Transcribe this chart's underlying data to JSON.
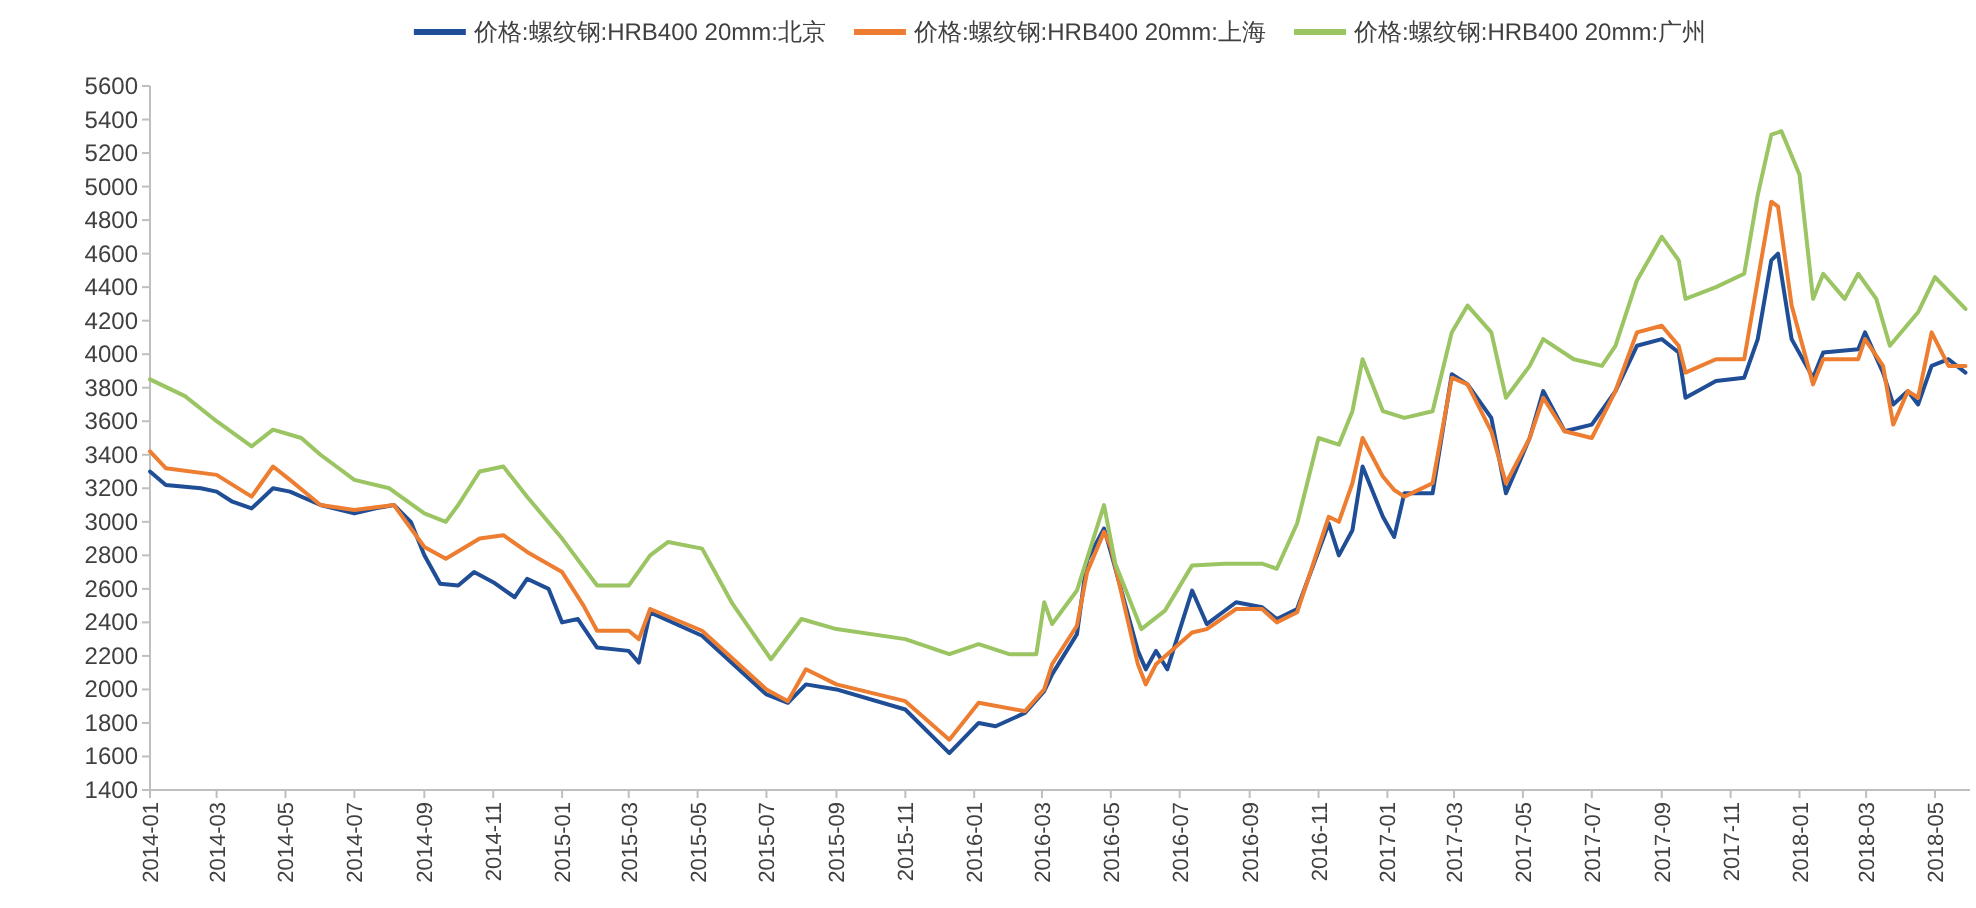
{
  "chart_data": {
    "type": "line",
    "legend": "top",
    "grid": false,
    "line_style": "solid",
    "marker": "none",
    "xlim": [
      "2014-01-01",
      "2018-06-01"
    ],
    "xticks": [
      "2014-01",
      "2014-03",
      "2014-05",
      "2014-07",
      "2014-09",
      "2014-11",
      "2015-01",
      "2015-03",
      "2015-05",
      "2015-07",
      "2015-09",
      "2015-11",
      "2016-01",
      "2016-03",
      "2016-05",
      "2016-07",
      "2016-09",
      "2016-11",
      "2017-01",
      "2017-03",
      "2017-05",
      "2017-07",
      "2017-09",
      "2017-11",
      "2018-01",
      "2018-03",
      "2018-05"
    ],
    "ylim": [
      1400,
      5600
    ],
    "yticks": [
      1400,
      1600,
      1800,
      2000,
      2200,
      2400,
      2600,
      2800,
      3000,
      3200,
      3400,
      3600,
      3800,
      4000,
      4200,
      4400,
      4600,
      4800,
      5000,
      5200,
      5400,
      5600
    ],
    "series": [
      {
        "name": "价格:螺纹钢:HRB400 20mm:北京",
        "color": "#1f4e96",
        "x": [
          "2014-01-01",
          "2014-01-15",
          "2014-02-15",
          "2014-03-01",
          "2014-03-15",
          "2014-04-01",
          "2014-04-20",
          "2014-05-05",
          "2014-06-01",
          "2014-07-01",
          "2014-07-20",
          "2014-08-05",
          "2014-08-20",
          "2014-09-01",
          "2014-09-15",
          "2014-10-01",
          "2014-10-15",
          "2014-11-01",
          "2014-11-20",
          "2014-12-01",
          "2014-12-20",
          "2015-01-01",
          "2015-01-15",
          "2015-02-01",
          "2015-03-01",
          "2015-03-10",
          "2015-03-20",
          "2015-05-05",
          "2015-07-01",
          "2015-07-20",
          "2015-08-05",
          "2015-09-01",
          "2015-11-01",
          "2015-12-10",
          "2016-01-05",
          "2016-01-20",
          "2016-02-15",
          "2016-03-03",
          "2016-03-10",
          "2016-04-01",
          "2016-04-10",
          "2016-04-25",
          "2016-05-01",
          "2016-05-25",
          "2016-06-01",
          "2016-06-10",
          "2016-06-20",
          "2016-07-12",
          "2016-07-25",
          "2016-08-20",
          "2016-09-12",
          "2016-09-25",
          "2016-10-13",
          "2016-11-10",
          "2016-11-19",
          "2016-12-01",
          "2016-12-10",
          "2016-12-28",
          "2017-01-07",
          "2017-01-16",
          "2017-02-10",
          "2017-02-27",
          "2017-03-13",
          "2017-04-03",
          "2017-04-16",
          "2017-05-07",
          "2017-05-19",
          "2017-06-07",
          "2017-07-01",
          "2017-07-22",
          "2017-08-10",
          "2017-09-01",
          "2017-09-16",
          "2017-09-22",
          "2017-10-19",
          "2017-11-13",
          "2017-11-25",
          "2017-12-07",
          "2017-12-13",
          "2017-12-25",
          "2018-01-13",
          "2018-01-22",
          "2018-02-22",
          "2018-02-28",
          "2018-03-16",
          "2018-03-25",
          "2018-04-07",
          "2018-04-16",
          "2018-04-28",
          "2018-05-13",
          "2018-05-28"
        ],
        "values": [
          3300,
          3220,
          3200,
          3180,
          3120,
          3080,
          3200,
          3180,
          3100,
          3050,
          3080,
          3100,
          3000,
          2800,
          2630,
          2620,
          2700,
          2640,
          2550,
          2660,
          2600,
          2400,
          2420,
          2250,
          2230,
          2160,
          2460,
          2320,
          1970,
          1920,
          2030,
          2000,
          1880,
          1620,
          1800,
          1780,
          1860,
          1990,
          2090,
          2330,
          2770,
          2960,
          2820,
          2230,
          2120,
          2230,
          2120,
          2590,
          2390,
          2520,
          2490,
          2420,
          2480,
          2990,
          2800,
          2950,
          3330,
          3030,
          2910,
          3170,
          3170,
          3880,
          3820,
          3620,
          3170,
          3500,
          3780,
          3540,
          3580,
          3780,
          4050,
          4090,
          4010,
          3740,
          3840,
          3860,
          4090,
          4560,
          4600,
          4090,
          3860,
          4010,
          4030,
          4130,
          3890,
          3700,
          3780,
          3700,
          3930,
          3970,
          3890
        ]
      },
      {
        "name": "价格:螺纹钢:HRB400 20mm:上海",
        "color": "#ed7d31",
        "x": [
          "2014-01-01",
          "2014-01-15",
          "2014-03-01",
          "2014-04-01",
          "2014-04-20",
          "2014-05-05",
          "2014-06-01",
          "2014-07-01",
          "2014-08-05",
          "2014-09-01",
          "2014-09-20",
          "2014-10-20",
          "2014-11-10",
          "2014-12-01",
          "2015-01-01",
          "2015-01-20",
          "2015-02-01",
          "2015-03-01",
          "2015-03-10",
          "2015-03-20",
          "2015-05-05",
          "2015-07-01",
          "2015-07-20",
          "2015-08-05",
          "2015-09-01",
          "2015-11-01",
          "2015-12-10",
          "2016-01-05",
          "2016-02-15",
          "2016-03-03",
          "2016-03-10",
          "2016-04-01",
          "2016-04-10",
          "2016-04-25",
          "2016-05-01",
          "2016-05-25",
          "2016-06-01",
          "2016-06-10",
          "2016-07-12",
          "2016-07-25",
          "2016-08-20",
          "2016-09-12",
          "2016-09-25",
          "2016-10-13",
          "2016-11-10",
          "2016-11-19",
          "2016-12-01",
          "2016-12-10",
          "2016-12-28",
          "2017-01-07",
          "2017-01-16",
          "2017-02-10",
          "2017-02-27",
          "2017-03-13",
          "2017-04-03",
          "2017-04-16",
          "2017-05-07",
          "2017-05-19",
          "2017-06-07",
          "2017-07-01",
          "2017-07-22",
          "2017-08-10",
          "2017-09-01",
          "2017-09-16",
          "2017-09-22",
          "2017-10-19",
          "2017-11-13",
          "2017-11-25",
          "2017-12-07",
          "2017-12-13",
          "2017-12-25",
          "2018-01-13",
          "2018-01-22",
          "2018-02-22",
          "2018-02-28",
          "2018-03-16",
          "2018-03-25",
          "2018-04-07",
          "2018-04-16",
          "2018-04-28",
          "2018-05-13",
          "2018-05-28"
        ],
        "values": [
          3420,
          3320,
          3280,
          3150,
          3330,
          3250,
          3100,
          3070,
          3100,
          2850,
          2780,
          2900,
          2920,
          2820,
          2700,
          2500,
          2350,
          2350,
          2300,
          2480,
          2350,
          2000,
          1930,
          2120,
          2030,
          1930,
          1700,
          1920,
          1870,
          2000,
          2150,
          2380,
          2700,
          2940,
          2850,
          2150,
          2030,
          2150,
          2340,
          2360,
          2480,
          2480,
          2400,
          2460,
          3030,
          3000,
          3230,
          3500,
          3270,
          3190,
          3150,
          3230,
          3860,
          3820,
          3540,
          3230,
          3500,
          3740,
          3540,
          3500,
          3780,
          4130,
          4170,
          4050,
          3890,
          3970,
          3970,
          4440,
          4910,
          4880,
          4290,
          3820,
          3970,
          3970,
          4090,
          3930,
          3580,
          3780,
          3740,
          4130,
          3930,
          3930
        ]
      },
      {
        "name": "价格:螺纹钢:HRB400 20mm:广州",
        "color": "#9bc463",
        "x": [
          "2014-01-01",
          "2014-02-01",
          "2014-03-01",
          "2014-04-01",
          "2014-04-20",
          "2014-05-15",
          "2014-06-01",
          "2014-07-01",
          "2014-08-01",
          "2014-09-01",
          "2014-09-20",
          "2014-10-01",
          "2014-10-20",
          "2014-11-10",
          "2014-12-01",
          "2015-01-01",
          "2015-02-01",
          "2015-03-01",
          "2015-03-20",
          "2015-04-05",
          "2015-05-05",
          "2015-06-01",
          "2015-07-05",
          "2015-08-01",
          "2015-09-01",
          "2015-11-01",
          "2015-12-10",
          "2016-01-05",
          "2016-02-01",
          "2016-02-25",
          "2016-03-03",
          "2016-03-10",
          "2016-04-01",
          "2016-04-25",
          "2016-05-05",
          "2016-05-28",
          "2016-06-18",
          "2016-07-12",
          "2016-08-10",
          "2016-09-12",
          "2016-09-25",
          "2016-10-13",
          "2016-11-01",
          "2016-11-19",
          "2016-12-01",
          "2016-12-10",
          "2016-12-28",
          "2017-01-16",
          "2017-02-10",
          "2017-02-27",
          "2017-03-13",
          "2017-04-03",
          "2017-04-16",
          "2017-05-07",
          "2017-05-19",
          "2017-06-15",
          "2017-07-10",
          "2017-07-22",
          "2017-08-10",
          "2017-09-01",
          "2017-09-16",
          "2017-09-22",
          "2017-10-19",
          "2017-11-13",
          "2017-11-25",
          "2017-12-07",
          "2017-12-16",
          "2018-01-01",
          "2018-01-13",
          "2018-01-22",
          "2018-02-10",
          "2018-02-22",
          "2018-03-10",
          "2018-03-22",
          "2018-04-16",
          "2018-05-01",
          "2018-05-28"
        ],
        "values": [
          3850,
          3750,
          3600,
          3450,
          3550,
          3500,
          3400,
          3250,
          3200,
          3050,
          3000,
          3100,
          3300,
          3330,
          3150,
          2900,
          2620,
          2620,
          2800,
          2880,
          2840,
          2510,
          2180,
          2420,
          2360,
          2300,
          2210,
          2270,
          2210,
          2210,
          2520,
          2390,
          2590,
          3100,
          2750,
          2360,
          2470,
          2740,
          2750,
          2750,
          2720,
          2990,
          3500,
          3460,
          3660,
          3970,
          3660,
          3620,
          3660,
          4130,
          4290,
          4130,
          3740,
          3930,
          4090,
          3970,
          3930,
          4050,
          4440,
          4700,
          4560,
          4330,
          4400,
          4480,
          4950,
          5310,
          5330,
          5070,
          4330,
          4480,
          4330,
          4480,
          4330,
          4050,
          4250,
          4460,
          4270
        ]
      }
    ]
  }
}
